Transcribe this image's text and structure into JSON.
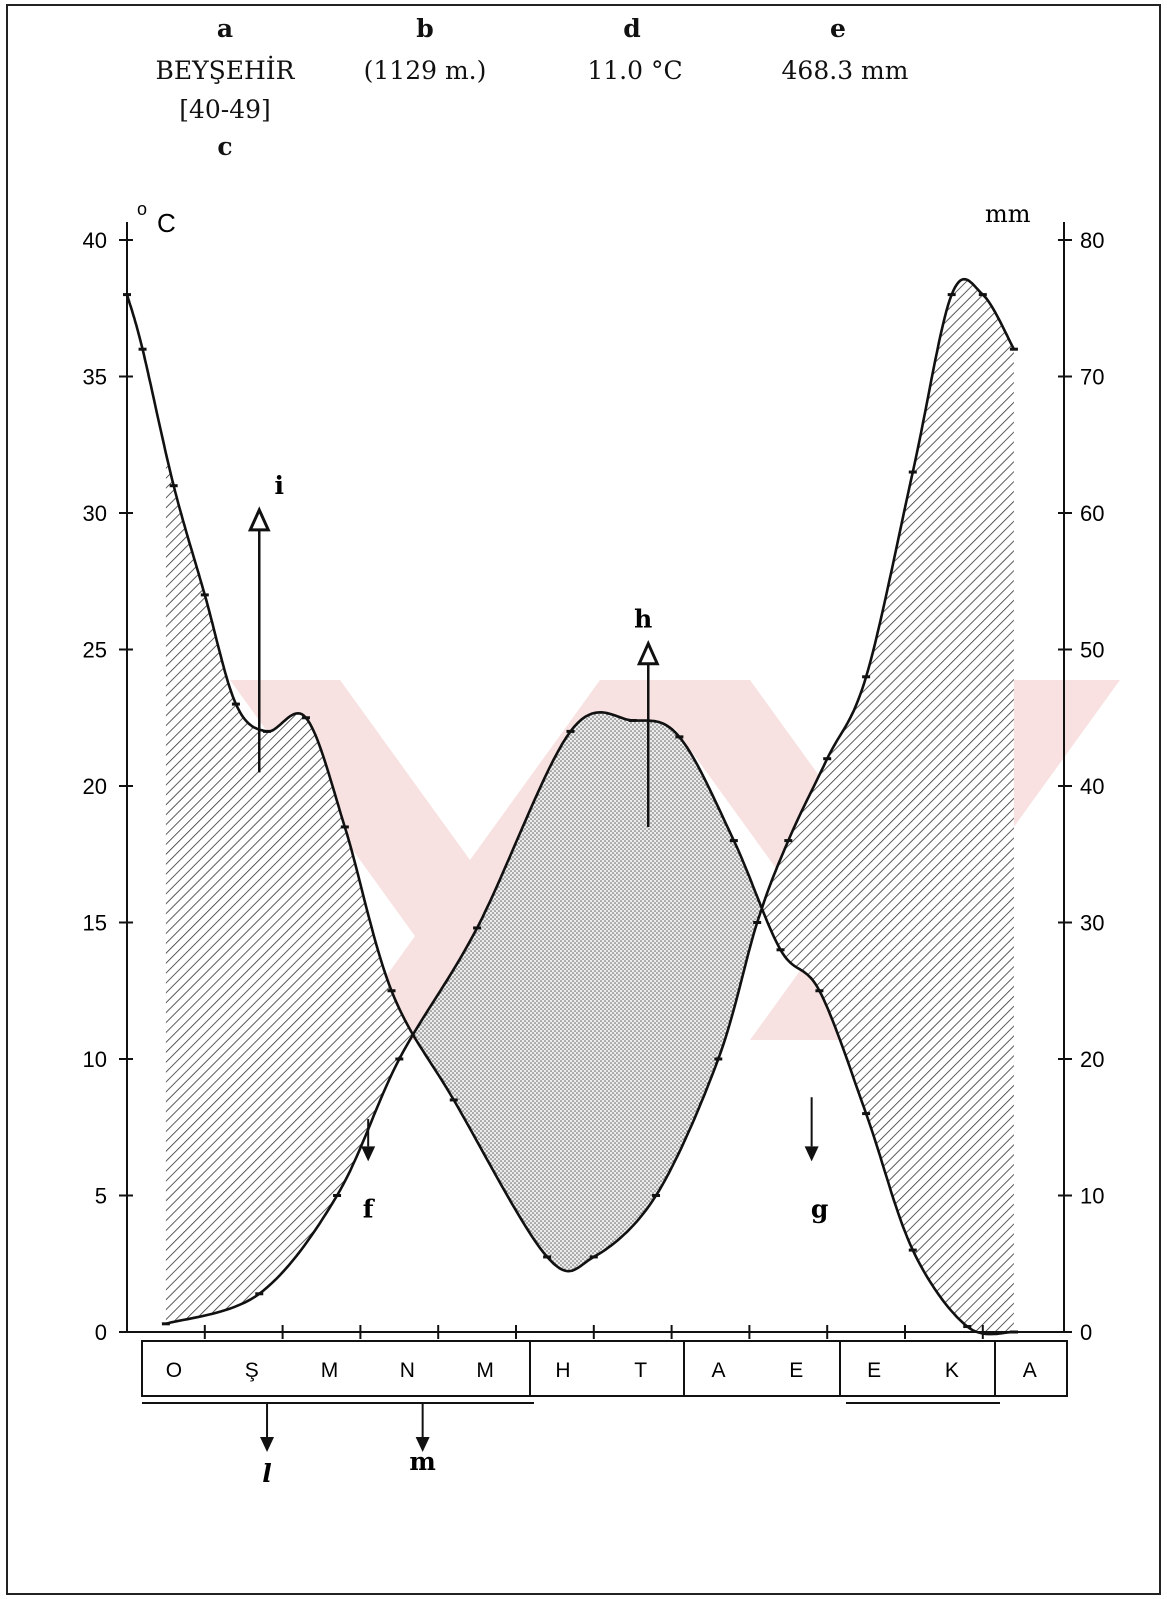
{
  "header": {
    "labels": {
      "a": "a",
      "b": "b",
      "c": "c",
      "d": "d",
      "e": "e"
    },
    "station": "BEYŞEHİR",
    "altitude": "(1129 m.)",
    "period": "[40-49]",
    "mean_temperature": "11.0 °C",
    "total_precipitation": "468.3 mm"
  },
  "colors": {
    "humid_hatch": "#333333",
    "dry_stipple": "#555555",
    "curve": "#111111",
    "watermark": "#f4c9c9"
  },
  "chart_data": {
    "type": "line",
    "chart_kind": "ombrothermic climate diagram",
    "months": [
      "O",
      "Ş",
      "M",
      "N",
      "M",
      "H",
      "T",
      "A",
      "E",
      "E",
      "K",
      "A"
    ],
    "left_axis": {
      "unit": "°C",
      "ticks": [
        0,
        5,
        10,
        15,
        20,
        25,
        30,
        35,
        40
      ],
      "range": [
        0,
        40
      ]
    },
    "right_axis": {
      "unit": "mm",
      "ticks": [
        0,
        10,
        20,
        30,
        40,
        50,
        60,
        70,
        80
      ],
      "range": [
        0,
        80
      ]
    },
    "series": [
      {
        "role": "temperature (°C, left axis)",
        "x": [
          0.5,
          1.7,
          2.7,
          3.5,
          4.5,
          5.7,
          6.5,
          7.1,
          7.8,
          8.4,
          8.9,
          9.5,
          10.1,
          10.8,
          11.4
        ],
        "values": [
          0.3,
          1.4,
          5.0,
          10.0,
          14.8,
          22.0,
          22.4,
          21.8,
          18.0,
          14.0,
          12.5,
          8.0,
          3.0,
          0.2,
          0.0
        ]
      },
      {
        "role": "precipitation (mm, right axis)",
        "x": [
          0.0,
          0.2,
          0.6,
          1.0,
          1.4,
          1.8,
          2.3,
          2.8,
          3.4,
          4.2,
          5.4,
          6.0,
          6.8,
          7.6,
          8.1,
          8.5,
          9.0,
          9.5,
          10.1,
          10.6,
          11.0,
          11.4
        ],
        "values": [
          76.0,
          72.0,
          62.0,
          54.0,
          46.0,
          44.0,
          45.0,
          37.0,
          25.0,
          17.0,
          5.5,
          5.5,
          10.0,
          20.0,
          30.0,
          36.0,
          42.0,
          48.0,
          63.0,
          76.0,
          76.0,
          72.0
        ]
      }
    ],
    "annotations": [
      {
        "label": "f",
        "x": 3.1,
        "direction": "down"
      },
      {
        "label": "g",
        "x": 8.8,
        "direction": "down"
      },
      {
        "label": "h",
        "x": 6.7,
        "direction": "up"
      },
      {
        "label": "i",
        "x": 1.7,
        "direction": "up"
      },
      {
        "label": "l",
        "x": 1.8,
        "direction": "down"
      },
      {
        "label": "m",
        "x": 3.8,
        "direction": "down"
      }
    ]
  }
}
